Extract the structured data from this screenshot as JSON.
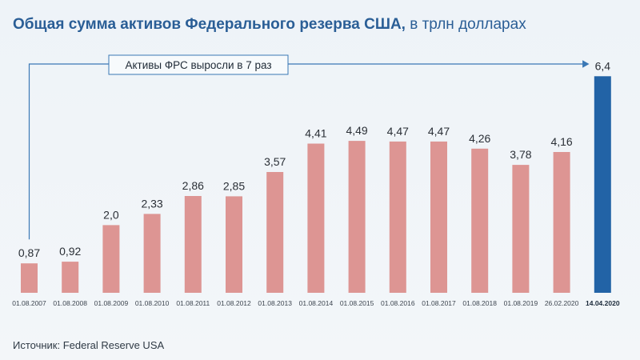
{
  "title": {
    "main": "Общая сумма активов Федерального резерва США,",
    "unit": " в трлн долларах"
  },
  "annotation": "Активы ФРС выросли в 7 раз",
  "source": "Источник: Federal Reserve USA",
  "colors": {
    "bar": "#dd9593",
    "bar_highlight": "#2263a6",
    "title": "#2a5e96",
    "arrow": "#3a78b5"
  },
  "chart_data": {
    "type": "bar",
    "title": "Общая сумма активов Федерального резерва США, в трлн долларах",
    "xlabel": "",
    "ylabel": "",
    "ylim": [
      0,
      7
    ],
    "grid": false,
    "categories": [
      "01.08.2007",
      "01.08.2008",
      "01.08.2009",
      "01.08.2010",
      "01.08.2011",
      "01.08.2012",
      "01.08.2013",
      "01.08.2014",
      "01.08.2015",
      "01.08.2016",
      "01.08.2017",
      "01.08.2018",
      "01.08.2019",
      "26.02.2020",
      "14.04.2020"
    ],
    "values": [
      0.87,
      0.92,
      2.0,
      2.33,
      2.86,
      2.85,
      3.57,
      4.41,
      4.49,
      4.47,
      4.47,
      4.26,
      3.78,
      4.16,
      6.4
    ],
    "value_labels": [
      "0,87",
      "0,92",
      "2,0",
      "2,33",
      "2,86",
      "2,85",
      "3,57",
      "4,41",
      "4,49",
      "4,47",
      "4,47",
      "4,26",
      "3,78",
      "4,16",
      "6,4"
    ],
    "highlight_index": 14
  }
}
